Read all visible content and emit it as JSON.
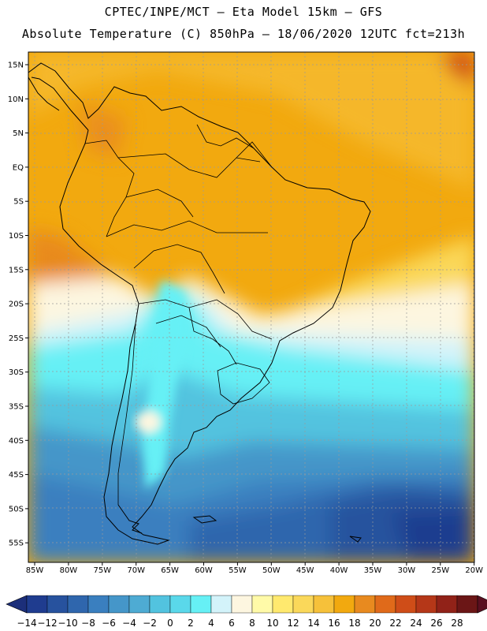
{
  "header": {
    "line1": "CPTEC/INPE/MCT –  Eta Model 15km – GFS",
    "line2": "Absolute Temperature (C) 850hPa – 18/06/2020 12UTC fct=213h"
  },
  "map": {
    "lat_labels": [
      "15N",
      "10N",
      "5N",
      "EQ",
      "5S",
      "10S",
      "15S",
      "20S",
      "25S",
      "30S",
      "35S",
      "40S",
      "45S",
      "50S",
      "55S"
    ],
    "lon_labels": [
      "85W",
      "80W",
      "75W",
      "70W",
      "65W",
      "60W",
      "55W",
      "50W",
      "45W",
      "40W",
      "35W",
      "30W",
      "25W",
      "20W"
    ]
  },
  "colorbar": {
    "labels": [
      "-14",
      "-12",
      "-10",
      "-8",
      "-6",
      "-4",
      "-2",
      "0",
      "2",
      "4",
      "6",
      "8",
      "10",
      "12",
      "14",
      "16",
      "18",
      "20",
      "22",
      "24",
      "26",
      "28"
    ],
    "colors": [
      "#1f3c8f",
      "#27529e",
      "#2f66ad",
      "#3a7fbf",
      "#4596c9",
      "#4eabd3",
      "#52c3df",
      "#5ad8ea",
      "#66f0f5",
      "#d3f3fa",
      "#fdf6e0",
      "#fffaa8",
      "#ffe96e",
      "#fad85a",
      "#f6c13a",
      "#f2a90f",
      "#e88a1f",
      "#e06a1a",
      "#cf4d18",
      "#b53718",
      "#912218",
      "#6b1616"
    ]
  },
  "colors": {
    "warm": "#f2a90f",
    "cold": "#1f3c8f"
  }
}
